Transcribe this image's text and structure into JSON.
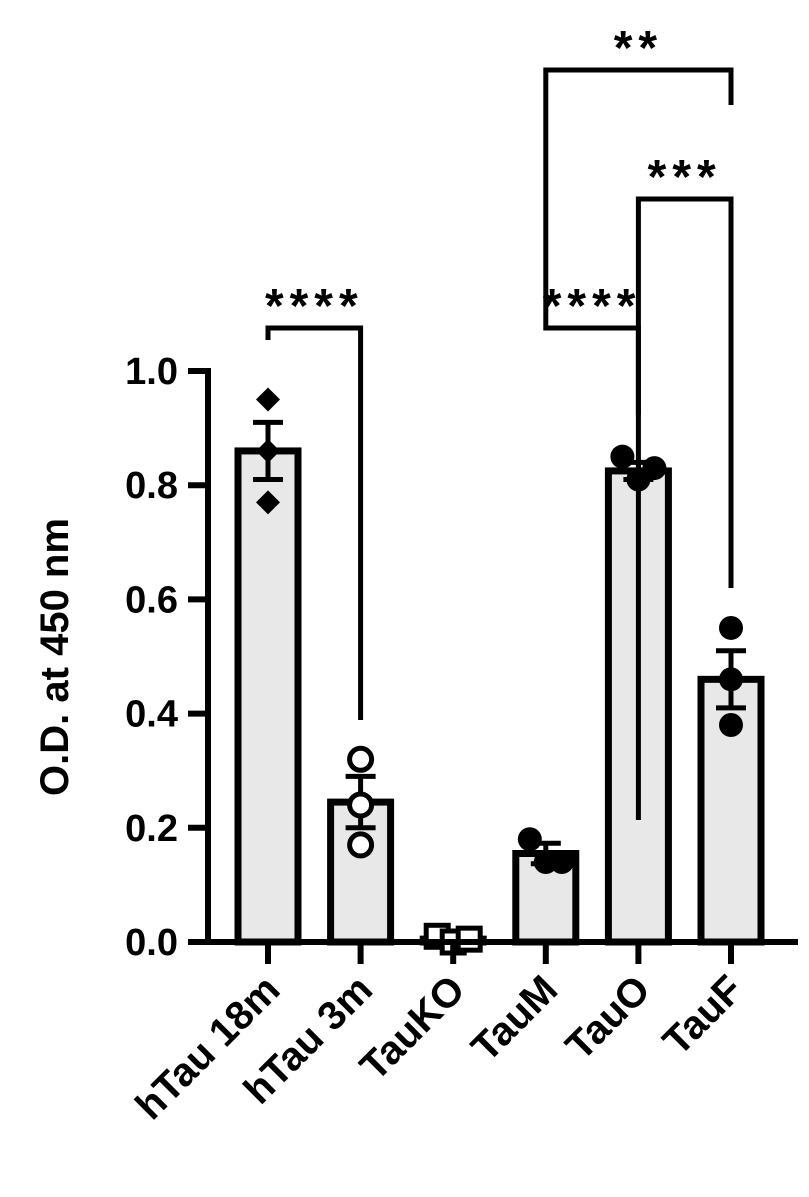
{
  "chart_data": {
    "type": "bar",
    "title": "",
    "xlabel": "",
    "ylabel": "O.D. at 450 nm",
    "ylim": [
      0,
      1.0
    ],
    "yticks": [
      "0.0",
      "0.2",
      "0.4",
      "0.6",
      "0.8",
      "1.0"
    ],
    "ytick_values": [
      0,
      0.2,
      0.4,
      0.6,
      0.8,
      1.0
    ],
    "grid": false,
    "legend": "none",
    "bar_fill": "#e8e8e8",
    "bar_stroke": "#000000",
    "categories": [
      "hTau 18m",
      "hTau 3m",
      "TauKO",
      "TauM",
      "TauO",
      "TauF"
    ],
    "values": [
      0.86,
      0.245,
      0.005,
      0.155,
      0.825,
      0.46
    ],
    "sem": [
      0.05,
      0.045,
      0.008,
      0.018,
      0.015,
      0.05
    ],
    "points": [
      {
        "marker": "diamond-filled",
        "values": [
          0.95,
          0.86,
          0.77
        ]
      },
      {
        "marker": "circle-open",
        "values": [
          0.32,
          0.24,
          0.17
        ]
      },
      {
        "marker": "square-open",
        "values": [
          0.01,
          0.0,
          0.005
        ]
      },
      {
        "marker": "circle-filled",
        "values": [
          0.18,
          0.14,
          0.14
        ]
      },
      {
        "marker": "circle-filled",
        "values": [
          0.85,
          0.81,
          0.83
        ]
      },
      {
        "marker": "circle-filled",
        "values": [
          0.55,
          0.46,
          0.38
        ]
      }
    ],
    "significance": [
      {
        "from": 0,
        "to": 1,
        "label": "****"
      },
      {
        "from": 3,
        "to": 4,
        "label": "****"
      },
      {
        "from": 4,
        "to": 5,
        "label": "***"
      },
      {
        "from": 3,
        "to": 5,
        "label": "**"
      }
    ]
  }
}
